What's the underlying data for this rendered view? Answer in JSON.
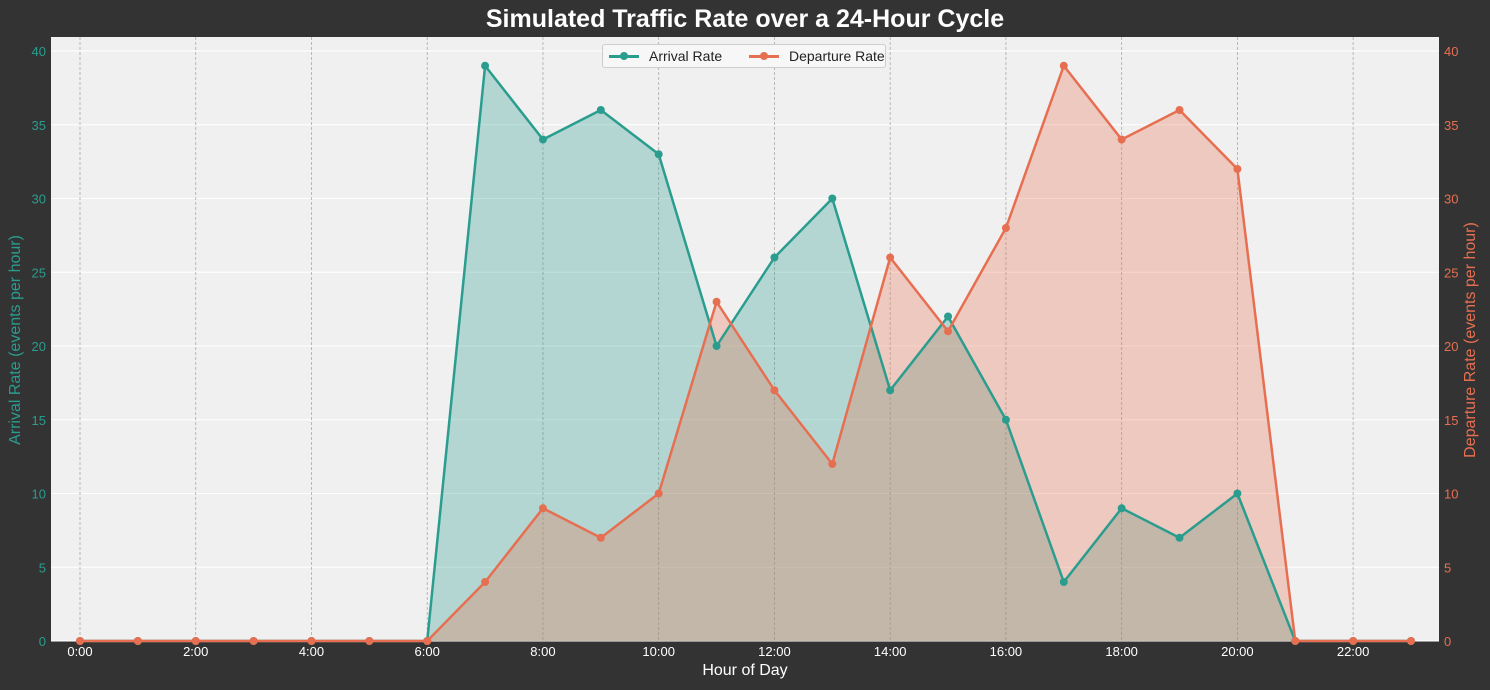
{
  "chart_data": {
    "type": "area",
    "title": "Simulated Traffic Rate over a 24-Hour Cycle",
    "xlabel": "Hour of Day",
    "ylabel_left": "Arrival Rate (events per hour)",
    "ylabel_right": "Departure Rate (events per hour)",
    "x": [
      0,
      1,
      2,
      3,
      4,
      5,
      6,
      7,
      8,
      9,
      10,
      11,
      12,
      13,
      14,
      15,
      16,
      17,
      18,
      19,
      20,
      21,
      22,
      23
    ],
    "x_tick_labels": [
      "0:00",
      "2:00",
      "4:00",
      "6:00",
      "8:00",
      "10:00",
      "12:00",
      "14:00",
      "16:00",
      "18:00",
      "20:00",
      "22:00"
    ],
    "y_ticks": [
      0,
      5,
      10,
      15,
      20,
      25,
      30,
      35,
      40
    ],
    "ylim": [
      0,
      41
    ],
    "xlim": [
      -0.5,
      23.5
    ],
    "grid": true,
    "legend_position": "upper center",
    "series": [
      {
        "name": "Arrival Rate",
        "axis": "left",
        "color": "#2a9d8f",
        "values": [
          0,
          0,
          0,
          0,
          0,
          0,
          0,
          39,
          34,
          36,
          33,
          20,
          26,
          30,
          17,
          22,
          15,
          4,
          9,
          7,
          10,
          0,
          0,
          0
        ]
      },
      {
        "name": "Departure Rate",
        "axis": "right",
        "color": "#e76f51",
        "values": [
          0,
          0,
          0,
          0,
          0,
          0,
          0,
          4,
          9,
          7,
          10,
          23,
          17,
          12,
          26,
          21,
          28,
          39,
          34,
          36,
          32,
          0,
          0,
          0
        ]
      }
    ]
  },
  "colors": {
    "background": "#333333",
    "plot_bg": "#f0f0f0",
    "arrival": "#2a9d8f",
    "departure": "#e76f51",
    "text": "#ffffff"
  },
  "legend": {
    "arrival_label": "Arrival Rate",
    "departure_label": "Departure Rate"
  }
}
